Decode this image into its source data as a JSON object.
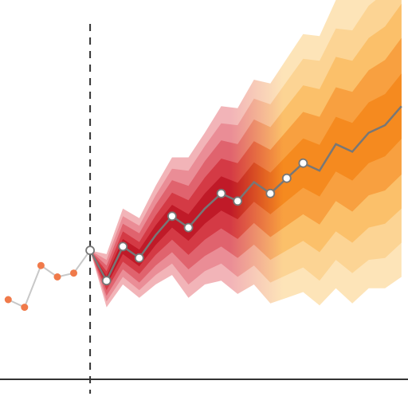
{
  "chart_data": {
    "type": "line",
    "title": "",
    "xlabel": "",
    "ylabel": "",
    "xlim": [
      -5.5,
      19.4
    ],
    "ylim": [
      0,
      10
    ],
    "grid": false,
    "legend": "none",
    "forecast_start": 0,
    "history": {
      "x": [
        -5,
        -4,
        -3,
        -2,
        -1,
        0
      ],
      "y": [
        2.1,
        1.9,
        3.0,
        2.7,
        2.8,
        3.4
      ],
      "line_color": "#c8c8c8",
      "marker_color": "#f07a4a"
    },
    "forecast": {
      "x": [
        0,
        1,
        2,
        3,
        4,
        5,
        6,
        7,
        8,
        9,
        10,
        11,
        12,
        13,
        14,
        15,
        16,
        17,
        18,
        19
      ],
      "median": [
        3.4,
        2.6,
        3.5,
        3.2,
        3.8,
        4.3,
        4.0,
        4.5,
        4.9,
        4.7,
        5.2,
        4.9,
        5.3,
        5.7,
        5.5,
        6.2,
        6.0,
        6.5,
        6.7,
        7.2
      ],
      "marker_x": [
        0,
        1,
        2,
        3,
        5,
        6,
        8,
        9,
        11,
        12,
        13
      ],
      "line_color": "#777777",
      "marker_color": "#ffffff"
    },
    "bands": [
      {
        "spread": [
          0,
          0.7,
          1.0,
          1.05,
          1.3,
          1.55,
          1.85,
          2.0,
          2.3,
          2.45,
          2.7,
          2.9,
          3.15,
          3.4,
          3.55,
          3.8,
          4.0,
          4.1,
          4.3,
          4.5
        ],
        "colors": [
          "#f2b4b8",
          "#fde4b8"
        ]
      },
      {
        "spread": [
          0,
          0.55,
          0.8,
          0.85,
          1.05,
          1.25,
          1.5,
          1.65,
          1.85,
          2.0,
          2.2,
          2.35,
          2.55,
          2.75,
          2.9,
          3.05,
          3.2,
          3.35,
          3.5,
          3.6
        ],
        "colors": [
          "#ea8d96",
          "#fcd494"
        ]
      },
      {
        "spread": [
          0,
          0.4,
          0.6,
          0.65,
          0.8,
          0.95,
          1.1,
          1.25,
          1.4,
          1.5,
          1.65,
          1.75,
          1.9,
          2.05,
          2.15,
          2.3,
          2.4,
          2.5,
          2.6,
          2.7
        ],
        "colors": [
          "#e0636e",
          "#fbc06a"
        ]
      },
      {
        "spread": [
          0,
          0.25,
          0.4,
          0.42,
          0.52,
          0.62,
          0.72,
          0.82,
          0.92,
          1.0,
          1.08,
          1.15,
          1.25,
          1.35,
          1.42,
          1.5,
          1.58,
          1.65,
          1.72,
          1.8
        ],
        "colors": [
          "#d43a45",
          "#f8a040"
        ]
      },
      {
        "spread": [
          0,
          0.12,
          0.2,
          0.22,
          0.26,
          0.3,
          0.35,
          0.4,
          0.45,
          0.48,
          0.52,
          0.55,
          0.6,
          0.65,
          0.68,
          0.72,
          0.76,
          0.8,
          0.82,
          0.86
        ],
        "colors": [
          "#c01a28",
          "#f58a1f"
        ]
      }
    ],
    "axis_color": "#333333",
    "divider_color": "#333333"
  }
}
